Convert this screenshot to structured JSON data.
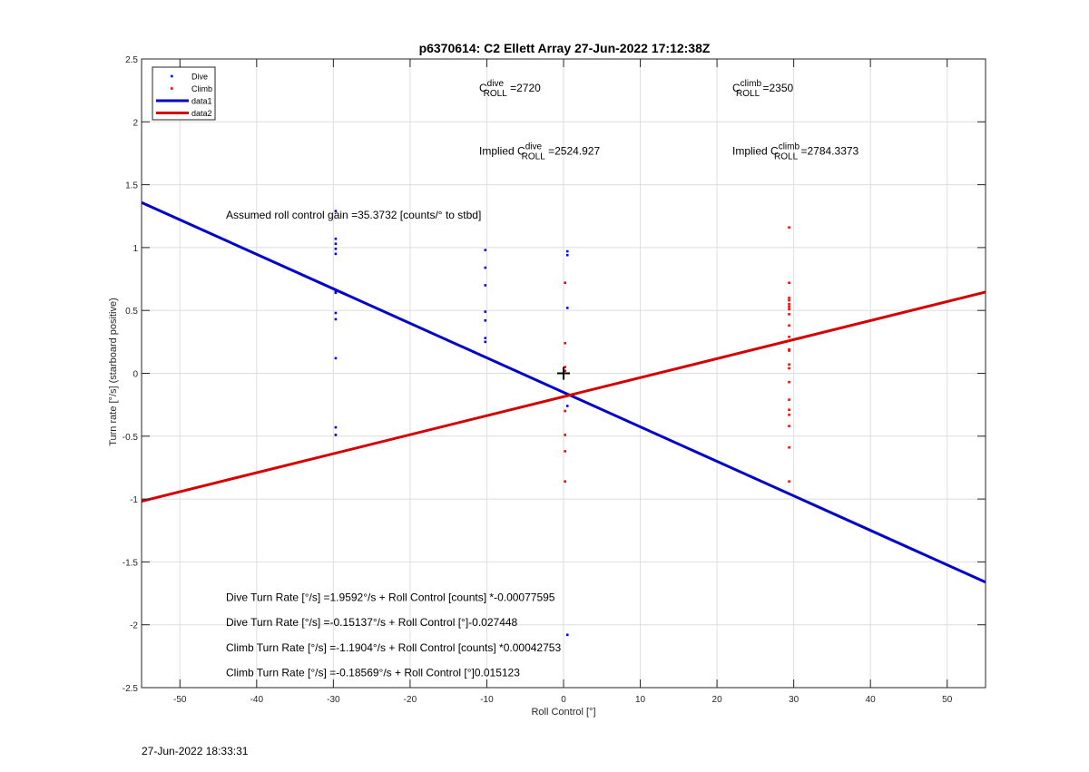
{
  "footer": {
    "timestamp": "27-Jun-2022 18:33:31"
  },
  "chart_data": {
    "type": "scatter",
    "title": "p6370614: C2 Ellett Array 27-Jun-2022 17:12:38Z",
    "xlabel": "Roll Control [°]",
    "ylabel": "Turn rate [°/s] (starboard positive)",
    "xlim": [
      -55,
      55
    ],
    "ylim": [
      -2.5,
      2.5
    ],
    "xticks": [
      -50,
      -40,
      -30,
      -20,
      -10,
      0,
      10,
      20,
      30,
      40,
      50
    ],
    "yticks": [
      -2.5,
      -2,
      -1.5,
      -1,
      -0.5,
      0,
      0.5,
      1,
      1.5,
      2,
      2.5
    ],
    "grid": true,
    "legend_position": "top-left",
    "legend": [
      "Dive",
      "Climb",
      "data1",
      "data2"
    ],
    "colors": {
      "dive": "#0000ff",
      "climb": "#ff0000",
      "data1": "#0000cc",
      "data2": "#d40000"
    },
    "series": [
      {
        "name": "Dive",
        "kind": "points",
        "points": [
          [
            -29.7,
            1.29
          ],
          [
            -29.7,
            1.07
          ],
          [
            -29.7,
            1.03
          ],
          [
            -29.7,
            0.99
          ],
          [
            -29.7,
            0.95
          ],
          [
            -29.7,
            0.65
          ],
          [
            -29.7,
            0.64
          ],
          [
            -29.7,
            0.48
          ],
          [
            -29.7,
            0.43
          ],
          [
            -29.7,
            0.12
          ],
          [
            -29.7,
            -0.43
          ],
          [
            -29.7,
            -0.49
          ],
          [
            -10.2,
            0.98
          ],
          [
            -10.2,
            0.84
          ],
          [
            -10.2,
            0.7
          ],
          [
            -10.2,
            0.49
          ],
          [
            -10.2,
            0.42
          ],
          [
            -10.2,
            0.28
          ],
          [
            -10.2,
            0.25
          ],
          [
            0.5,
            0.97
          ],
          [
            0.5,
            0.94
          ],
          [
            0.5,
            0.52
          ],
          [
            0.5,
            -0.26
          ],
          [
            0.5,
            -2.08
          ]
        ]
      },
      {
        "name": "Climb",
        "kind": "points",
        "points": [
          [
            0.2,
            0.72
          ],
          [
            0.2,
            0.24
          ],
          [
            0.2,
            0.05
          ],
          [
            0.2,
            0.02
          ],
          [
            0.2,
            -0.3
          ],
          [
            0.2,
            -0.49
          ],
          [
            0.2,
            -0.62
          ],
          [
            0.2,
            -0.86
          ],
          [
            29.4,
            1.16
          ],
          [
            29.4,
            0.72
          ],
          [
            29.4,
            0.6
          ],
          [
            29.4,
            0.58
          ],
          [
            29.4,
            0.55
          ],
          [
            29.4,
            0.53
          ],
          [
            29.4,
            0.51
          ],
          [
            29.4,
            0.47
          ],
          [
            29.4,
            0.38
          ],
          [
            29.4,
            0.29
          ],
          [
            29.4,
            0.19
          ],
          [
            29.4,
            0.18
          ],
          [
            29.4,
            0.07
          ],
          [
            29.4,
            0.04
          ],
          [
            29.4,
            -0.07
          ],
          [
            29.4,
            -0.21
          ],
          [
            29.4,
            -0.29
          ],
          [
            29.4,
            -0.33
          ],
          [
            29.4,
            -0.42
          ],
          [
            29.4,
            -0.59
          ],
          [
            29.4,
            -0.86
          ]
        ]
      },
      {
        "name": "data1",
        "kind": "line",
        "intercept": -0.15137,
        "slope": -0.027448
      },
      {
        "name": "data2",
        "kind": "line",
        "intercept": -0.18569,
        "slope": 0.015123
      }
    ],
    "marker": {
      "symbol": "+",
      "x": 0,
      "y": 0
    },
    "annotations": {
      "c_dive": {
        "pre": "C",
        "sup": "dive",
        "sub": "ROLL",
        "post": " =2720",
        "x": -11,
        "y": 2.24
      },
      "c_climb": {
        "pre": "C",
        "sup": "climb",
        "sub": "ROLL",
        "post": " =2350",
        "x": 22,
        "y": 2.24
      },
      "implied_dive": {
        "pre": "Implied C",
        "sup": "dive",
        "sub": "ROLL",
        "post": " =2524.927",
        "x": -11,
        "y": 1.74
      },
      "implied_climb": {
        "pre": "Implied C",
        "sup": "climb",
        "sub": "ROLL",
        "post": " =2784.3373",
        "x": 22,
        "y": 1.74
      },
      "gain": {
        "text": "Assumed roll control gain =35.3732 [counts/° to stbd]",
        "x": -44,
        "y": 1.23
      },
      "eq1": {
        "text": "Dive Turn Rate [°/s] =1.9592°/s + Roll Control [counts] *-0.00077595",
        "x": -44,
        "y": -1.81
      },
      "eq2": {
        "text": "Dive Turn Rate [°/s] =-0.15137°/s + Roll Control [°]-0.027448",
        "x": -44,
        "y": -2.01
      },
      "eq3": {
        "text": "Climb Turn Rate [°/s] =-1.1904°/s + Roll Control [counts] *0.00042753",
        "x": -44,
        "y": -2.21
      },
      "eq4": {
        "text": "Climb Turn Rate [°/s] =-0.18569°/s + Roll Control [°]0.015123",
        "x": -44,
        "y": -2.41
      }
    }
  }
}
